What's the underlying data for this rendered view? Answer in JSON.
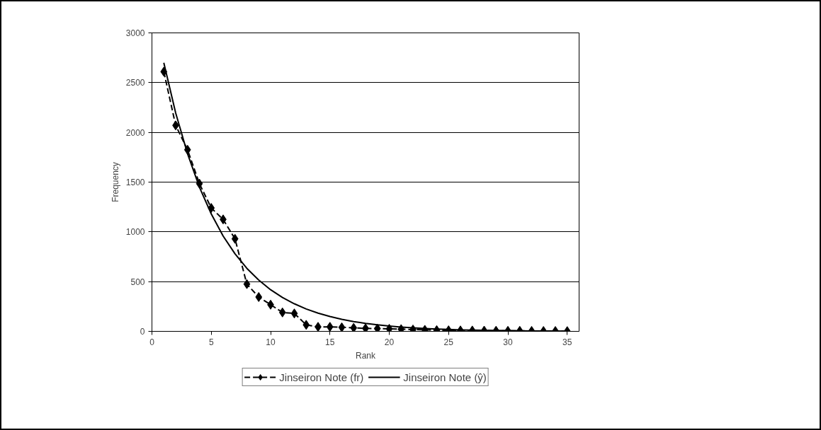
{
  "chart_data": {
    "type": "line",
    "xlabel": "Rank",
    "ylabel": "Frequency",
    "x": [
      1,
      2,
      3,
      4,
      5,
      6,
      7,
      8,
      9,
      10,
      11,
      12,
      13,
      14,
      15,
      16,
      17,
      18,
      19,
      20,
      21,
      22,
      23,
      24,
      25,
      26,
      27,
      28,
      29,
      30,
      31,
      32,
      33,
      34,
      35
    ],
    "series": [
      {
        "name": "Jinseiron Note (fr)",
        "color": "#000000",
        "marker": "diamond",
        "line_style": "dashed",
        "values": [
          2610,
          2070,
          1825,
          1485,
          1240,
          1125,
          930,
          475,
          345,
          268,
          190,
          180,
          65,
          45,
          45,
          40,
          35,
          30,
          28,
          25,
          22,
          18,
          15,
          12,
          10,
          9,
          8,
          7,
          6,
          5,
          5,
          4,
          3,
          3,
          2
        ]
      },
      {
        "name": "Jinseiron Note (ŷ)",
        "color": "#000000",
        "marker": "none",
        "line_style": "solid",
        "values": [
          2700,
          2195,
          1785,
          1450,
          1180,
          958,
          779,
          633,
          515,
          418,
          340,
          277,
          225,
          183,
          149,
          121,
          98,
          80,
          65,
          53,
          43,
          35,
          28,
          23,
          19,
          15,
          12,
          10,
          8,
          7,
          5,
          4,
          4,
          3,
          2
        ]
      }
    ],
    "xlim": [
      0,
      36
    ],
    "xticks": [
      0,
      5,
      10,
      15,
      20,
      25,
      30,
      35
    ],
    "ylim": [
      0,
      3000
    ],
    "yticks": [
      0,
      500,
      1000,
      1500,
      2000,
      2500,
      3000
    ],
    "grid": "y",
    "legend": "bottom"
  }
}
